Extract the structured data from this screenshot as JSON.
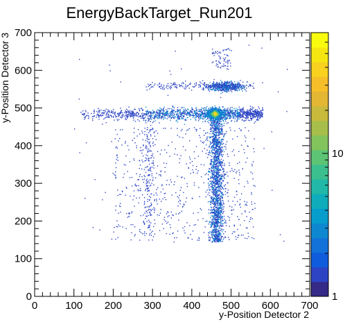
{
  "chart_data": {
    "type": "heatmap",
    "title": "EnergyBackTarget_Run201",
    "xlabel": "y-Position Detector 2",
    "ylabel": "y-Position Detector 3",
    "xlim": [
      0,
      700
    ],
    "ylim": [
      0,
      700
    ],
    "x_ticks": [
      0,
      100,
      200,
      300,
      400,
      500,
      600,
      700
    ],
    "y_ticks": [
      0,
      100,
      200,
      300,
      400,
      500,
      600,
      700
    ],
    "x_tick_labels": [
      "0",
      "100",
      "200",
      "300",
      "400",
      "500",
      "600",
      "700"
    ],
    "y_tick_labels": [
      "0",
      "100",
      "200",
      "300",
      "400",
      "500",
      "600",
      "700"
    ],
    "colorbar": {
      "scale": "log",
      "min": 1,
      "max": 70,
      "tick_values": [
        1,
        10
      ],
      "tick_labels": [
        "1",
        "10"
      ],
      "colors": [
        "#352a87",
        "#2c44c4",
        "#0f5cdd",
        "#1272d9",
        "#0d88d0",
        "#069ccc",
        "#0fadbb",
        "#21b8a8",
        "#3cbf8f",
        "#5cc474",
        "#82c35b",
        "#a7bf4a",
        "#c8ba3c",
        "#e3b634",
        "#f6bf2a",
        "#f8d21e",
        "#f5e612",
        "#f9fb0e"
      ]
    },
    "clusters": [
      {
        "region": "horizontal band",
        "x": [
          110,
          580
        ],
        "y": [
          470,
          500
        ],
        "relative_density": "medium"
      },
      {
        "region": "vertical band",
        "x": [
          430,
          490
        ],
        "y": [
          145,
          500
        ],
        "relative_density": "medium"
      },
      {
        "region": "hot spot",
        "x": [
          440,
          480
        ],
        "y": [
          470,
          500
        ],
        "relative_density": "high"
      },
      {
        "region": "upper blob",
        "x": [
          440,
          530
        ],
        "y": [
          540,
          575
        ],
        "relative_density": "medium"
      },
      {
        "region": "upper faint band",
        "x": [
          280,
          560
        ],
        "y": [
          550,
          570
        ],
        "relative_density": "low"
      },
      {
        "region": "top sparse",
        "x": [
          450,
          500
        ],
        "y": [
          600,
          660
        ],
        "relative_density": "low"
      },
      {
        "region": "diffuse background",
        "x": [
          200,
          560
        ],
        "y": [
          150,
          450
        ],
        "relative_density": "low"
      }
    ]
  }
}
